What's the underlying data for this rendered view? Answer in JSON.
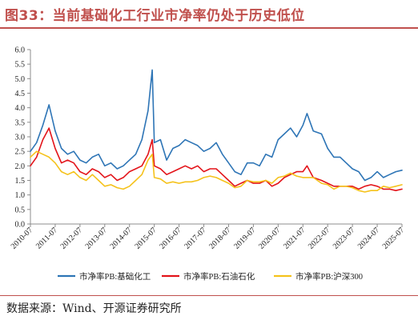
{
  "title": "图33：当前基础化工行业市净率仍处于历史低位",
  "source": "数据来源：Wind、开源证券研究所",
  "colors": {
    "title": "#c0504d",
    "series1": "#2e75b6",
    "series2": "#e3141a",
    "series3": "#f5c21b"
  },
  "chart_data": {
    "type": "line",
    "title": "",
    "xlabel": "",
    "ylabel": "",
    "ylim": [
      0,
      6
    ],
    "yticks": [
      "0.0",
      "0.5",
      "1.0",
      "1.5",
      "2.0",
      "2.5",
      "3.0",
      "3.5",
      "4.0",
      "4.5",
      "5.0",
      "5.5",
      "6.0"
    ],
    "xlim": [
      "2010-07",
      "2025-07"
    ],
    "xticks": [
      "2010-07",
      "2011-07",
      "2012-07",
      "2013-07",
      "2014-07",
      "2015-07",
      "2016-07",
      "2017-07",
      "2018-07",
      "2019-07",
      "2020-07",
      "2021-07",
      "2022-07",
      "2023-07",
      "2024-07",
      "2025-07"
    ],
    "grid": false,
    "legend_position": "bottom",
    "series": [
      {
        "name": "市净率PB:基础化工",
        "x": [
          "2010-07",
          "2010-10",
          "2011-01",
          "2011-04",
          "2011-07",
          "2011-10",
          "2012-01",
          "2012-04",
          "2012-07",
          "2012-10",
          "2013-01",
          "2013-04",
          "2013-07",
          "2013-10",
          "2014-01",
          "2014-04",
          "2014-07",
          "2014-10",
          "2015-01",
          "2015-04",
          "2015-06",
          "2015-07",
          "2015-10",
          "2016-01",
          "2016-04",
          "2016-07",
          "2016-10",
          "2017-01",
          "2017-04",
          "2017-07",
          "2017-10",
          "2018-01",
          "2018-04",
          "2018-07",
          "2018-10",
          "2019-01",
          "2019-04",
          "2019-07",
          "2019-10",
          "2020-01",
          "2020-04",
          "2020-07",
          "2020-10",
          "2021-01",
          "2021-04",
          "2021-07",
          "2021-09",
          "2021-12",
          "2022-04",
          "2022-07",
          "2022-10",
          "2023-01",
          "2023-04",
          "2023-07",
          "2023-10",
          "2024-01",
          "2024-04",
          "2024-07",
          "2024-10",
          "2025-01",
          "2025-04",
          "2025-07"
        ],
        "values": [
          2.5,
          2.8,
          3.4,
          4.1,
          3.2,
          2.6,
          2.4,
          2.5,
          2.2,
          2.1,
          2.3,
          2.4,
          2.0,
          2.1,
          1.9,
          2.0,
          2.2,
          2.4,
          2.9,
          3.9,
          5.3,
          2.8,
          2.9,
          2.2,
          2.6,
          2.7,
          2.9,
          2.8,
          2.7,
          2.5,
          2.6,
          2.8,
          2.4,
          2.1,
          1.8,
          1.7,
          2.1,
          2.1,
          2.0,
          2.4,
          2.3,
          2.9,
          3.1,
          3.3,
          3.0,
          3.4,
          3.8,
          3.2,
          3.1,
          2.6,
          2.3,
          2.3,
          2.1,
          1.9,
          1.8,
          1.5,
          1.6,
          1.8,
          1.6,
          1.7,
          1.8,
          1.85
        ]
      },
      {
        "name": "市净率PB:石油石化",
        "x": [
          "2010-07",
          "2010-10",
          "2011-01",
          "2011-04",
          "2011-07",
          "2011-10",
          "2012-01",
          "2012-04",
          "2012-07",
          "2012-10",
          "2013-01",
          "2013-04",
          "2013-07",
          "2013-10",
          "2014-01",
          "2014-04",
          "2014-07",
          "2014-10",
          "2015-01",
          "2015-04",
          "2015-06",
          "2015-07",
          "2015-10",
          "2016-01",
          "2016-04",
          "2016-07",
          "2016-10",
          "2017-01",
          "2017-04",
          "2017-07",
          "2017-10",
          "2018-01",
          "2018-04",
          "2018-07",
          "2018-10",
          "2019-01",
          "2019-04",
          "2019-07",
          "2019-10",
          "2020-01",
          "2020-04",
          "2020-07",
          "2020-10",
          "2021-01",
          "2021-04",
          "2021-07",
          "2021-09",
          "2021-12",
          "2022-04",
          "2022-07",
          "2022-10",
          "2023-01",
          "2023-04",
          "2023-07",
          "2023-10",
          "2024-01",
          "2024-04",
          "2024-07",
          "2024-10",
          "2025-01",
          "2025-04",
          "2025-07"
        ],
        "values": [
          2.0,
          2.3,
          2.9,
          3.3,
          2.6,
          2.1,
          2.2,
          2.1,
          1.8,
          1.7,
          1.9,
          1.8,
          1.6,
          1.7,
          1.5,
          1.6,
          1.8,
          1.9,
          2.0,
          2.4,
          2.9,
          2.0,
          1.9,
          1.7,
          1.8,
          1.9,
          2.0,
          1.9,
          2.0,
          1.8,
          1.9,
          1.9,
          1.7,
          1.5,
          1.3,
          1.4,
          1.5,
          1.4,
          1.4,
          1.5,
          1.3,
          1.4,
          1.6,
          1.7,
          1.8,
          1.8,
          2.0,
          1.6,
          1.5,
          1.4,
          1.3,
          1.3,
          1.3,
          1.3,
          1.2,
          1.3,
          1.35,
          1.3,
          1.2,
          1.2,
          1.15,
          1.2
        ]
      },
      {
        "name": "市净率PB:沪深300",
        "x": [
          "2010-07",
          "2010-10",
          "2011-01",
          "2011-04",
          "2011-07",
          "2011-10",
          "2012-01",
          "2012-04",
          "2012-07",
          "2012-10",
          "2013-01",
          "2013-04",
          "2013-07",
          "2013-10",
          "2014-01",
          "2014-04",
          "2014-07",
          "2014-10",
          "2015-01",
          "2015-04",
          "2015-06",
          "2015-07",
          "2015-10",
          "2016-01",
          "2016-04",
          "2016-07",
          "2016-10",
          "2017-01",
          "2017-04",
          "2017-07",
          "2017-10",
          "2018-01",
          "2018-04",
          "2018-07",
          "2018-10",
          "2019-01",
          "2019-04",
          "2019-07",
          "2019-10",
          "2020-01",
          "2020-04",
          "2020-07",
          "2020-10",
          "2021-01",
          "2021-04",
          "2021-07",
          "2021-09",
          "2021-12",
          "2022-04",
          "2022-07",
          "2022-10",
          "2023-01",
          "2023-04",
          "2023-07",
          "2023-10",
          "2024-01",
          "2024-04",
          "2024-07",
          "2024-10",
          "2025-01",
          "2025-04",
          "2025-07"
        ],
        "values": [
          2.3,
          2.5,
          2.4,
          2.3,
          2.1,
          1.8,
          1.7,
          1.8,
          1.6,
          1.5,
          1.7,
          1.5,
          1.3,
          1.35,
          1.25,
          1.2,
          1.3,
          1.5,
          1.7,
          2.2,
          2.4,
          1.6,
          1.55,
          1.4,
          1.45,
          1.4,
          1.45,
          1.45,
          1.5,
          1.6,
          1.65,
          1.6,
          1.5,
          1.4,
          1.25,
          1.3,
          1.5,
          1.45,
          1.45,
          1.5,
          1.4,
          1.6,
          1.65,
          1.75,
          1.65,
          1.6,
          1.6,
          1.6,
          1.4,
          1.35,
          1.2,
          1.3,
          1.3,
          1.25,
          1.15,
          1.1,
          1.15,
          1.15,
          1.3,
          1.25,
          1.3,
          1.35
        ]
      }
    ]
  }
}
